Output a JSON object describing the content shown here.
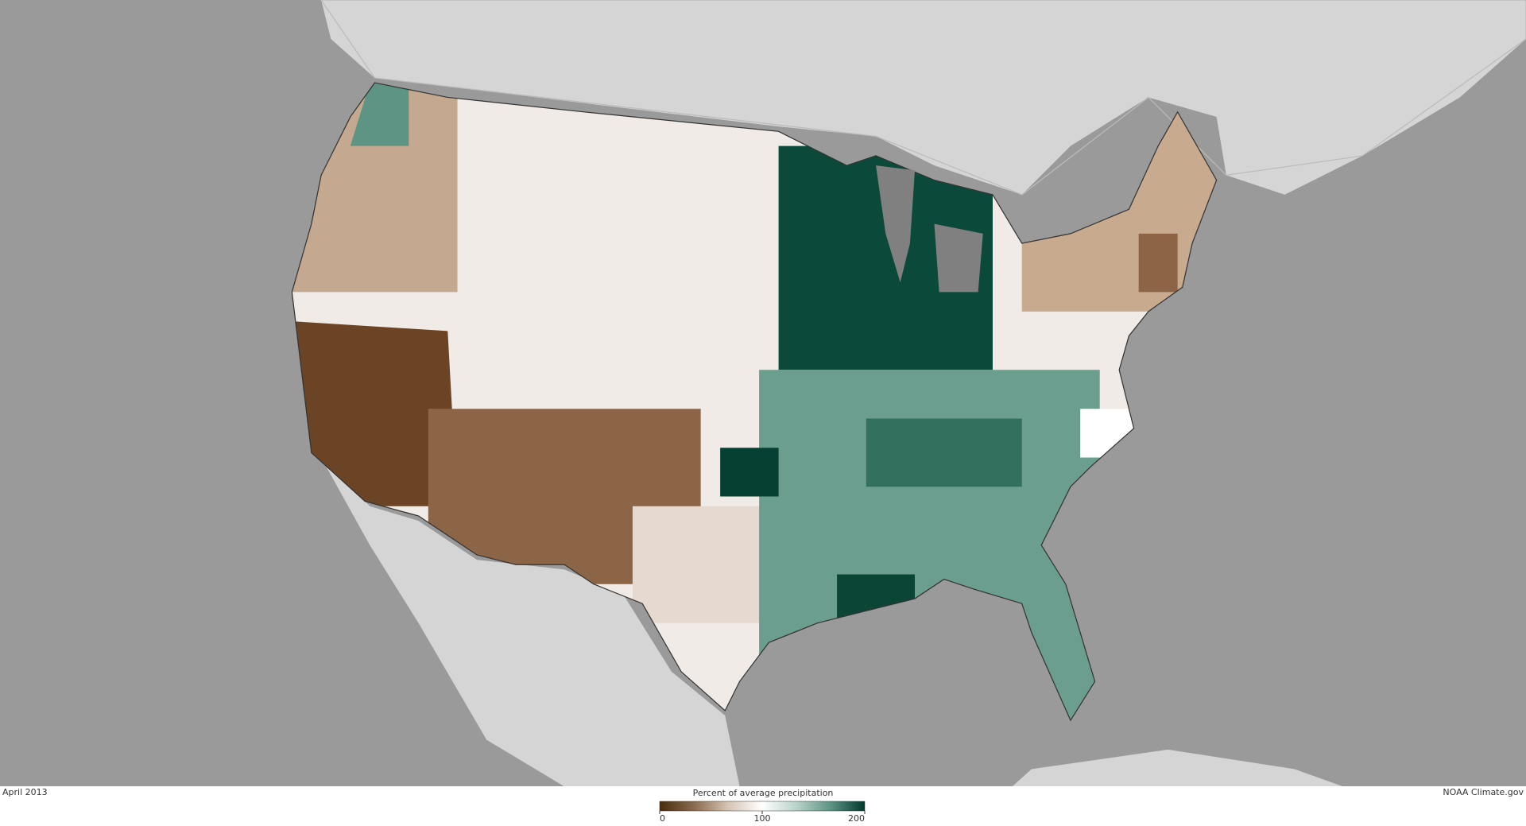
{
  "caption": {
    "date": "April 2013",
    "credit": "NOAA Climate.gov"
  },
  "legend": {
    "title": "Percent of average precipitation",
    "ticks": [
      0,
      100,
      200
    ],
    "colors": [
      "#4a2c0d",
      "#8a6a4c",
      "#d6c4b4",
      "#ffffff",
      "#b9d2ca",
      "#5e9484",
      "#00382c"
    ]
  }
}
